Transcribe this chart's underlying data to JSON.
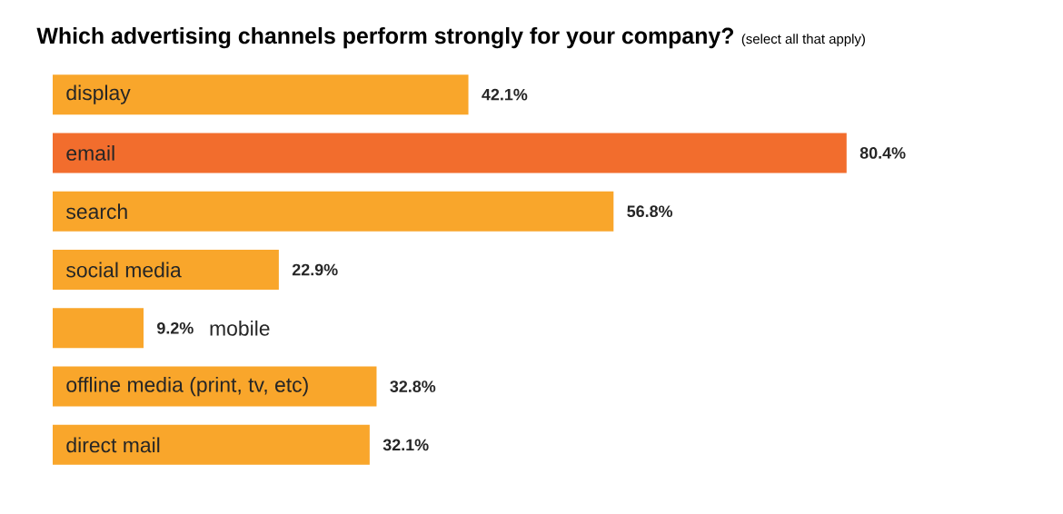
{
  "chart_data": {
    "type": "bar",
    "orientation": "horizontal",
    "title": "Which advertising channels perform strongly for your company?",
    "subtitle": "(select all that apply)",
    "categories": [
      "display",
      "email",
      "search",
      "social media",
      "mobile",
      "offline media (print, tv, etc)",
      "direct mail"
    ],
    "values": [
      42.1,
      80.4,
      56.8,
      22.9,
      9.2,
      32.8,
      32.1
    ],
    "value_labels": [
      "42.1%",
      "80.4%",
      "56.8%",
      "22.9%",
      "9.2%",
      "32.8%",
      "32.1%"
    ],
    "colors": [
      "#f9a62b",
      "#f26d2d",
      "#f9a62b",
      "#f9a62b",
      "#f9a62b",
      "#f9a62b",
      "#f9a62b"
    ]
  }
}
